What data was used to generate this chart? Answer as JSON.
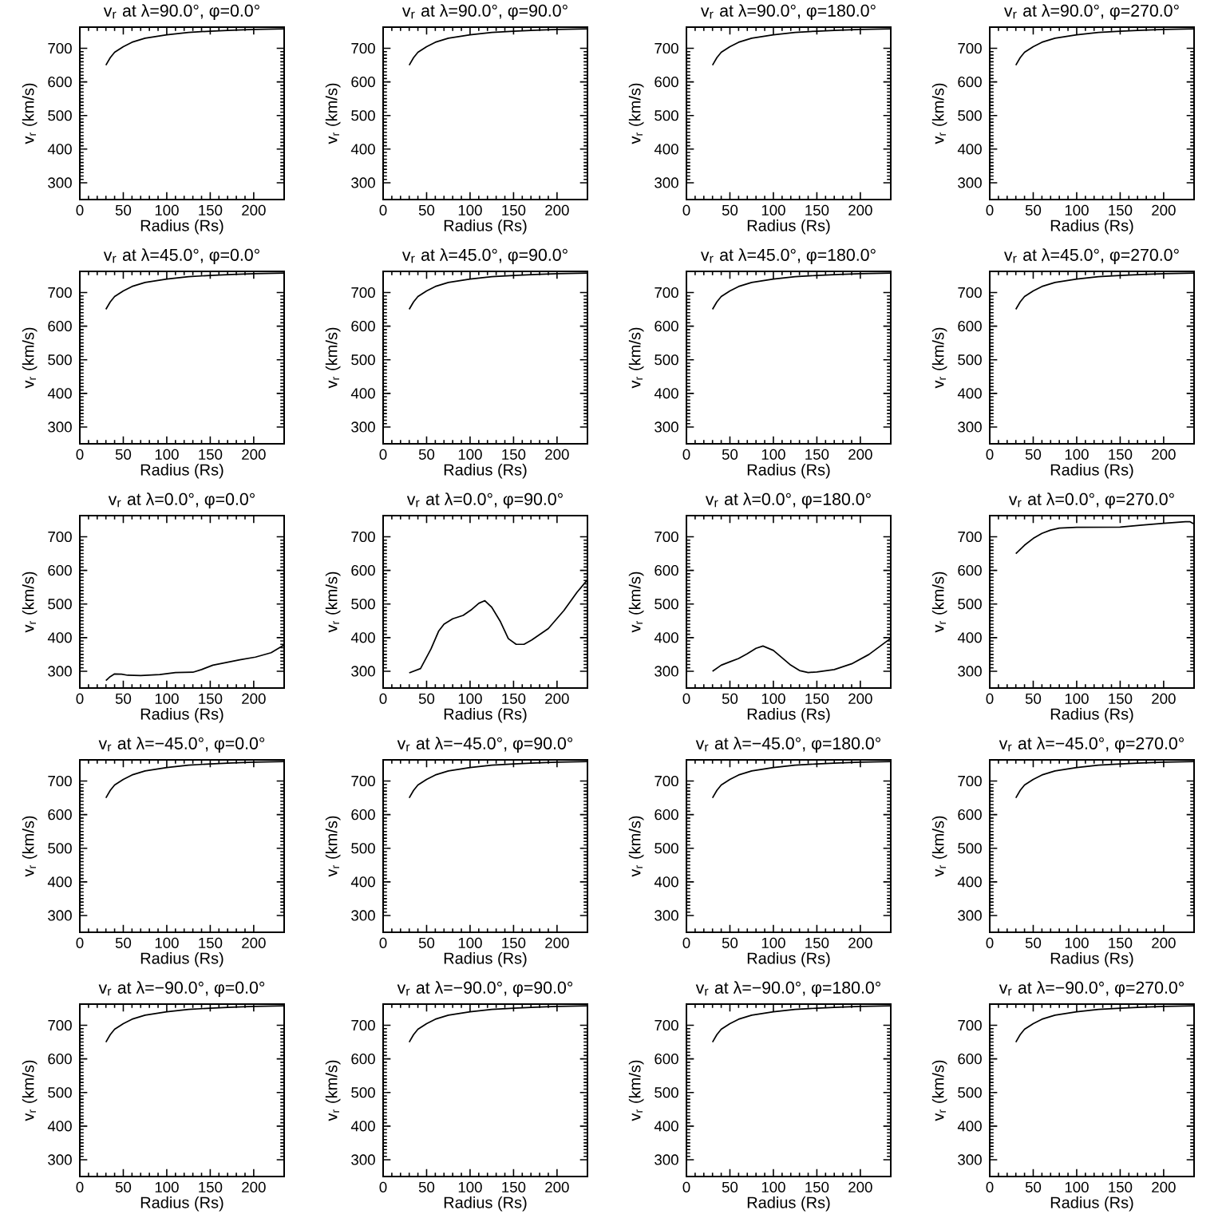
{
  "chart_data": [
    {
      "type": "line",
      "title": "v$_{r}$ at λ=90.0°, φ=0.0°",
      "xlabel": "Radius (Rs)",
      "ylabel": "v$_{r}$ (km/s)",
      "x": [
        30,
        35,
        40,
        50,
        60,
        75,
        100,
        125,
        150,
        175,
        200,
        235
      ],
      "values": [
        650,
        672,
        688,
        705,
        718,
        730,
        740,
        747,
        751,
        754,
        756,
        758
      ],
      "color": "#000000",
      "xlim": [
        0,
        235
      ],
      "ylim": [
        250,
        763
      ],
      "xticks": [
        0,
        50,
        100,
        150,
        200
      ],
      "yticks": [
        300,
        400,
        500,
        600,
        700
      ]
    },
    {
      "type": "line",
      "title": "v$_{r}$ at λ=90.0°, φ=90.0°",
      "xlabel": "Radius (Rs)",
      "ylabel": "v$_{r}$ (km/s)",
      "x": [
        30,
        35,
        40,
        50,
        60,
        75,
        100,
        125,
        150,
        175,
        200,
        235
      ],
      "values": [
        650,
        672,
        688,
        705,
        718,
        730,
        740,
        747,
        751,
        754,
        756,
        758
      ],
      "color": "#000000",
      "xlim": [
        0,
        235
      ],
      "ylim": [
        250,
        763
      ],
      "xticks": [
        0,
        50,
        100,
        150,
        200
      ],
      "yticks": [
        300,
        400,
        500,
        600,
        700
      ]
    },
    {
      "type": "line",
      "title": "v$_{r}$ at λ=90.0°, φ=180.0°",
      "xlabel": "Radius (Rs)",
      "ylabel": "v$_{r}$ (km/s)",
      "x": [
        30,
        35,
        40,
        50,
        60,
        75,
        100,
        125,
        150,
        175,
        200,
        235
      ],
      "values": [
        650,
        672,
        688,
        705,
        718,
        730,
        740,
        747,
        751,
        754,
        756,
        758
      ],
      "color": "#000000",
      "xlim": [
        0,
        235
      ],
      "ylim": [
        250,
        763
      ],
      "xticks": [
        0,
        50,
        100,
        150,
        200
      ],
      "yticks": [
        300,
        400,
        500,
        600,
        700
      ]
    },
    {
      "type": "line",
      "title": "v$_{r}$ at λ=90.0°, φ=270.0°",
      "xlabel": "Radius (Rs)",
      "ylabel": "v$_{r}$ (km/s)",
      "x": [
        30,
        35,
        40,
        50,
        60,
        75,
        100,
        125,
        150,
        175,
        200,
        235
      ],
      "values": [
        650,
        672,
        688,
        705,
        718,
        730,
        740,
        747,
        751,
        754,
        756,
        758
      ],
      "color": "#000000",
      "xlim": [
        0,
        235
      ],
      "ylim": [
        250,
        763
      ],
      "xticks": [
        0,
        50,
        100,
        150,
        200
      ],
      "yticks": [
        300,
        400,
        500,
        600,
        700
      ]
    },
    {
      "type": "line",
      "title": "v$_{r}$ at λ=45.0°, φ=0.0°",
      "xlabel": "Radius (Rs)",
      "ylabel": "v$_{r}$ (km/s)",
      "x": [
        30,
        35,
        40,
        50,
        60,
        75,
        100,
        125,
        150,
        175,
        200,
        235
      ],
      "values": [
        650,
        672,
        688,
        705,
        718,
        730,
        740,
        747,
        751,
        754,
        756,
        758
      ],
      "color": "#000000",
      "xlim": [
        0,
        235
      ],
      "ylim": [
        250,
        763
      ],
      "xticks": [
        0,
        50,
        100,
        150,
        200
      ],
      "yticks": [
        300,
        400,
        500,
        600,
        700
      ]
    },
    {
      "type": "line",
      "title": "v$_{r}$ at λ=45.0°, φ=90.0°",
      "xlabel": "Radius (Rs)",
      "ylabel": "v$_{r}$ (km/s)",
      "x": [
        30,
        35,
        40,
        50,
        60,
        75,
        100,
        125,
        150,
        175,
        200,
        235
      ],
      "values": [
        650,
        672,
        688,
        705,
        718,
        730,
        740,
        747,
        751,
        754,
        756,
        758
      ],
      "color": "#000000",
      "xlim": [
        0,
        235
      ],
      "ylim": [
        250,
        763
      ],
      "xticks": [
        0,
        50,
        100,
        150,
        200
      ],
      "yticks": [
        300,
        400,
        500,
        600,
        700
      ]
    },
    {
      "type": "line",
      "title": "v$_{r}$ at λ=45.0°, φ=180.0°",
      "xlabel": "Radius (Rs)",
      "ylabel": "v$_{r}$ (km/s)",
      "x": [
        30,
        35,
        40,
        50,
        60,
        75,
        100,
        125,
        150,
        175,
        200,
        235
      ],
      "values": [
        650,
        672,
        688,
        705,
        718,
        730,
        740,
        747,
        751,
        754,
        756,
        758
      ],
      "color": "#000000",
      "xlim": [
        0,
        235
      ],
      "ylim": [
        250,
        763
      ],
      "xticks": [
        0,
        50,
        100,
        150,
        200
      ],
      "yticks": [
        300,
        400,
        500,
        600,
        700
      ]
    },
    {
      "type": "line",
      "title": "v$_{r}$ at λ=45.0°, φ=270.0°",
      "xlabel": "Radius (Rs)",
      "ylabel": "v$_{r}$ (km/s)",
      "x": [
        30,
        35,
        40,
        50,
        60,
        75,
        100,
        125,
        150,
        175,
        200,
        235
      ],
      "values": [
        650,
        672,
        688,
        705,
        718,
        730,
        740,
        747,
        751,
        754,
        756,
        758
      ],
      "color": "#000000",
      "xlim": [
        0,
        235
      ],
      "ylim": [
        250,
        763
      ],
      "xticks": [
        0,
        50,
        100,
        150,
        200
      ],
      "yticks": [
        300,
        400,
        500,
        600,
        700
      ]
    },
    {
      "type": "line",
      "title": "v$_{r}$ at λ=0.0°, φ=0.0°",
      "xlabel": "Radius (Rs)",
      "ylabel": "v$_{r}$ (km/s)",
      "x": [
        30,
        35,
        40,
        48,
        55,
        70,
        92,
        110,
        130,
        140,
        153,
        184,
        202,
        220,
        235
      ],
      "values": [
        272,
        284,
        292,
        291,
        288,
        287,
        290,
        296,
        297,
        305,
        318,
        334,
        342,
        355,
        378
      ],
      "color": "#000000",
      "xlim": [
        0,
        235
      ],
      "ylim": [
        250,
        763
      ],
      "xticks": [
        0,
        50,
        100,
        150,
        200
      ],
      "yticks": [
        300,
        400,
        500,
        600,
        700
      ]
    },
    {
      "type": "line",
      "title": "v$_{r}$ at λ=0.0°, φ=90.0°",
      "xlabel": "Radius (Rs)",
      "ylabel": "v$_{r}$ (km/s)",
      "x": [
        30,
        43,
        55,
        64,
        70,
        80,
        92,
        101,
        110,
        117,
        125,
        135,
        144,
        153,
        162,
        171,
        190,
        208,
        223,
        235
      ],
      "values": [
        295,
        308,
        366,
        420,
        440,
        456,
        466,
        482,
        502,
        510,
        490,
        447,
        397,
        380,
        380,
        393,
        427,
        481,
        535,
        572
      ],
      "color": "#000000",
      "xlim": [
        0,
        235
      ],
      "ylim": [
        250,
        763
      ],
      "xticks": [
        0,
        50,
        100,
        150,
        200
      ],
      "yticks": [
        300,
        400,
        500,
        600,
        700
      ]
    },
    {
      "type": "line",
      "title": "v$_{r}$ at λ=0.0°, φ=180.0°",
      "xlabel": "Radius (Rs)",
      "ylabel": "v$_{r}$ (km/s)",
      "x": [
        30,
        40,
        50,
        60,
        70,
        80,
        88,
        100,
        110,
        120,
        130,
        140,
        150,
        170,
        190,
        210,
        235
      ],
      "values": [
        300,
        318,
        328,
        338,
        352,
        368,
        375,
        362,
        340,
        318,
        302,
        296,
        298,
        305,
        322,
        350,
        398
      ],
      "color": "#000000",
      "xlim": [
        0,
        235
      ],
      "ylim": [
        250,
        763
      ],
      "xticks": [
        0,
        50,
        100,
        150,
        200
      ],
      "yticks": [
        300,
        400,
        500,
        600,
        700
      ]
    },
    {
      "type": "line",
      "title": "v$_{r}$ at λ=0.0°, φ=270.0°",
      "xlabel": "Radius (Rs)",
      "ylabel": "v$_{r}$ (km/s)",
      "x": [
        30,
        40,
        50,
        60,
        70,
        80,
        100,
        150,
        175,
        200,
        225,
        230,
        235
      ],
      "values": [
        650,
        675,
        695,
        710,
        720,
        726,
        728,
        729,
        735,
        740,
        745,
        745,
        738
      ],
      "color": "#000000",
      "xlim": [
        0,
        235
      ],
      "ylim": [
        250,
        763
      ],
      "xticks": [
        0,
        50,
        100,
        150,
        200
      ],
      "yticks": [
        300,
        400,
        500,
        600,
        700
      ]
    },
    {
      "type": "line",
      "title": "v$_{r}$ at λ=−45.0°, φ=0.0°",
      "xlabel": "Radius (Rs)",
      "ylabel": "v$_{r}$ (km/s)",
      "x": [
        30,
        35,
        40,
        50,
        60,
        75,
        100,
        125,
        150,
        175,
        200,
        235
      ],
      "values": [
        650,
        672,
        688,
        705,
        718,
        730,
        740,
        747,
        751,
        754,
        756,
        758
      ],
      "color": "#000000",
      "xlim": [
        0,
        235
      ],
      "ylim": [
        250,
        763
      ],
      "xticks": [
        0,
        50,
        100,
        150,
        200
      ],
      "yticks": [
        300,
        400,
        500,
        600,
        700
      ]
    },
    {
      "type": "line",
      "title": "v$_{r}$ at λ=−45.0°, φ=90.0°",
      "xlabel": "Radius (Rs)",
      "ylabel": "v$_{r}$ (km/s)",
      "x": [
        30,
        35,
        40,
        50,
        60,
        75,
        100,
        125,
        150,
        175,
        200,
        235
      ],
      "values": [
        650,
        672,
        688,
        705,
        718,
        730,
        740,
        747,
        751,
        754,
        756,
        758
      ],
      "color": "#000000",
      "xlim": [
        0,
        235
      ],
      "ylim": [
        250,
        763
      ],
      "xticks": [
        0,
        50,
        100,
        150,
        200
      ],
      "yticks": [
        300,
        400,
        500,
        600,
        700
      ]
    },
    {
      "type": "line",
      "title": "v$_{r}$ at λ=−45.0°, φ=180.0°",
      "xlabel": "Radius (Rs)",
      "ylabel": "v$_{r}$ (km/s)",
      "x": [
        30,
        35,
        40,
        50,
        60,
        75,
        100,
        125,
        150,
        175,
        200,
        235
      ],
      "values": [
        650,
        672,
        688,
        705,
        718,
        730,
        740,
        747,
        751,
        754,
        756,
        758
      ],
      "color": "#000000",
      "xlim": [
        0,
        235
      ],
      "ylim": [
        250,
        763
      ],
      "xticks": [
        0,
        50,
        100,
        150,
        200
      ],
      "yticks": [
        300,
        400,
        500,
        600,
        700
      ]
    },
    {
      "type": "line",
      "title": "v$_{r}$ at λ=−45.0°, φ=270.0°",
      "xlabel": "Radius (Rs)",
      "ylabel": "v$_{r}$ (km/s)",
      "x": [
        30,
        35,
        40,
        50,
        60,
        75,
        100,
        125,
        150,
        175,
        200,
        235
      ],
      "values": [
        650,
        672,
        688,
        705,
        718,
        730,
        740,
        747,
        751,
        754,
        756,
        758
      ],
      "color": "#000000",
      "xlim": [
        0,
        235
      ],
      "ylim": [
        250,
        763
      ],
      "xticks": [
        0,
        50,
        100,
        150,
        200
      ],
      "yticks": [
        300,
        400,
        500,
        600,
        700
      ]
    },
    {
      "type": "line",
      "title": "v$_{r}$ at λ=−90.0°, φ=0.0°",
      "xlabel": "Radius (Rs)",
      "ylabel": "v$_{r}$ (km/s)",
      "x": [
        30,
        35,
        40,
        50,
        60,
        75,
        100,
        125,
        150,
        175,
        200,
        235
      ],
      "values": [
        650,
        672,
        688,
        705,
        718,
        730,
        740,
        747,
        751,
        754,
        756,
        758
      ],
      "color": "#000000",
      "xlim": [
        0,
        235
      ],
      "ylim": [
        250,
        763
      ],
      "xticks": [
        0,
        50,
        100,
        150,
        200
      ],
      "yticks": [
        300,
        400,
        500,
        600,
        700
      ]
    },
    {
      "type": "line",
      "title": "v$_{r}$ at λ=−90.0°, φ=90.0°",
      "xlabel": "Radius (Rs)",
      "ylabel": "v$_{r}$ (km/s)",
      "x": [
        30,
        35,
        40,
        50,
        60,
        75,
        100,
        125,
        150,
        175,
        200,
        235
      ],
      "values": [
        650,
        672,
        688,
        705,
        718,
        730,
        740,
        747,
        751,
        754,
        756,
        758
      ],
      "color": "#000000",
      "xlim": [
        0,
        235
      ],
      "ylim": [
        250,
        763
      ],
      "xticks": [
        0,
        50,
        100,
        150,
        200
      ],
      "yticks": [
        300,
        400,
        500,
        600,
        700
      ]
    },
    {
      "type": "line",
      "title": "v$_{r}$ at λ=−90.0°, φ=180.0°",
      "xlabel": "Radius (Rs)",
      "ylabel": "v$_{r}$ (km/s)",
      "x": [
        30,
        35,
        40,
        50,
        60,
        75,
        100,
        125,
        150,
        175,
        200,
        235
      ],
      "values": [
        650,
        672,
        688,
        705,
        718,
        730,
        740,
        747,
        751,
        754,
        756,
        758
      ],
      "color": "#000000",
      "xlim": [
        0,
        235
      ],
      "ylim": [
        250,
        763
      ],
      "xticks": [
        0,
        50,
        100,
        150,
        200
      ],
      "yticks": [
        300,
        400,
        500,
        600,
        700
      ]
    },
    {
      "type": "line",
      "title": "v$_{r}$ at λ=−90.0°, φ=270.0°",
      "xlabel": "Radius (Rs)",
      "ylabel": "v$_{r}$ (km/s)",
      "x": [
        30,
        35,
        40,
        50,
        60,
        75,
        100,
        125,
        150,
        175,
        200,
        235
      ],
      "values": [
        650,
        672,
        688,
        705,
        718,
        730,
        740,
        747,
        751,
        754,
        756,
        758
      ],
      "color": "#000000",
      "xlim": [
        0,
        235
      ],
      "ylim": [
        250,
        763
      ],
      "xticks": [
        0,
        50,
        100,
        150,
        200
      ],
      "yticks": [
        300,
        400,
        500,
        600,
        700
      ]
    }
  ]
}
